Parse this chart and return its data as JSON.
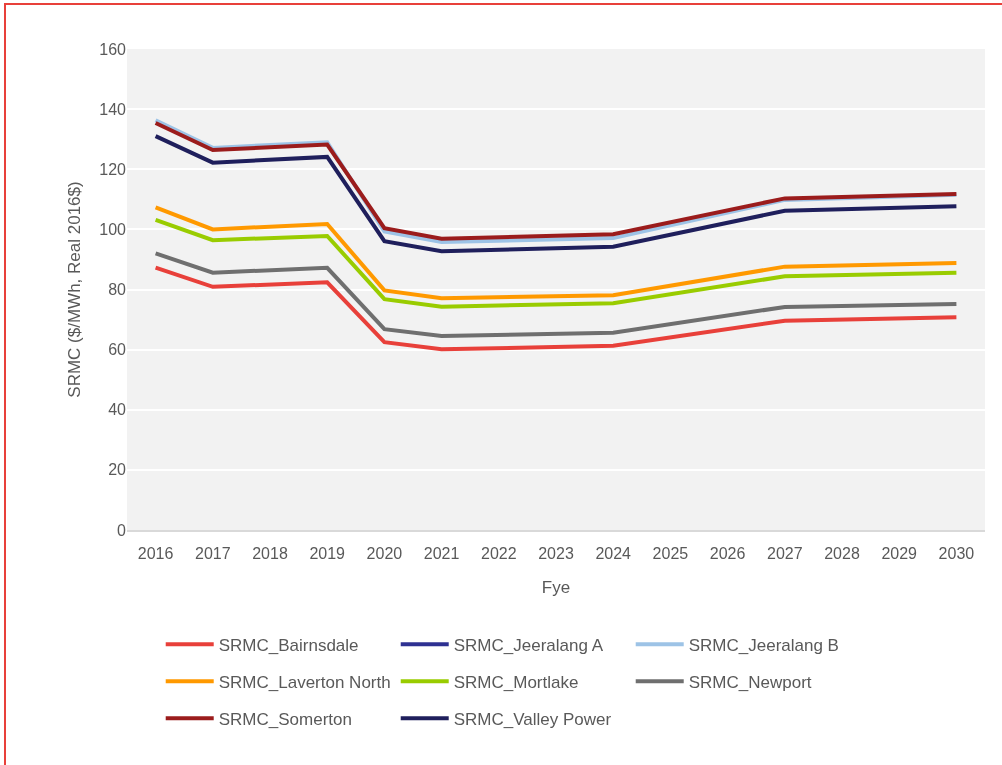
{
  "chart_data": {
    "type": "line",
    "xlabel": "Fye",
    "ylabel": "SRMC ($/MWh, Real 2016$)",
    "x": [
      2016,
      2017,
      2019,
      2020,
      2021,
      2024,
      2027,
      2030
    ],
    "xlim": [
      2015.5,
      2030.5
    ],
    "xticks": [
      2016,
      2017,
      2018,
      2019,
      2020,
      2021,
      2022,
      2023,
      2024,
      2025,
      2026,
      2027,
      2028,
      2029,
      2030
    ],
    "ylim": [
      0,
      160
    ],
    "yticks": [
      0,
      20,
      40,
      60,
      80,
      100,
      120,
      140,
      160
    ],
    "grid": "y",
    "legend": "bottom",
    "line_style": "solid",
    "series": [
      {
        "name": "SRMC_Bairnsdale",
        "color": "#e8403a",
        "values": [
          87.3,
          80.9,
          82.4,
          62.5,
          60.1,
          61.3,
          69.6,
          70.8
        ]
      },
      {
        "name": "SRMC_Jeeralang A",
        "color": "#2e3192",
        "values": [
          null,
          null,
          null,
          null,
          null,
          null,
          null,
          null
        ]
      },
      {
        "name": "SRMC_Jeeralang B",
        "color": "#9dc3e6",
        "values": [
          136.3,
          127.1,
          129.0,
          99.3,
          95.8,
          97.1,
          109.8,
          111.5
        ]
      },
      {
        "name": "SRMC_Laverton North",
        "color": "#ff9900",
        "values": [
          107.3,
          100.0,
          101.8,
          79.7,
          77.1,
          78.1,
          87.6,
          88.8
        ]
      },
      {
        "name": "SRMC_Mortlake",
        "color": "#99cc00",
        "values": [
          103.2,
          96.4,
          97.8,
          76.8,
          74.3,
          75.4,
          84.4,
          85.6
        ]
      },
      {
        "name": "SRMC_Newport",
        "color": "#6f6f6f",
        "values": [
          92.0,
          85.6,
          87.2,
          66.8,
          64.5,
          65.6,
          74.2,
          75.2
        ]
      },
      {
        "name": "SRMC_Somerton",
        "color": "#9b1c1c",
        "values": [
          135.4,
          126.4,
          128.2,
          100.4,
          96.9,
          98.4,
          110.3,
          111.8
        ]
      },
      {
        "name": "SRMC_Valley Power",
        "color": "#1f1f5c",
        "values": [
          131.0,
          122.2,
          124.1,
          96.1,
          92.7,
          94.2,
          106.2,
          107.7
        ]
      }
    ]
  }
}
